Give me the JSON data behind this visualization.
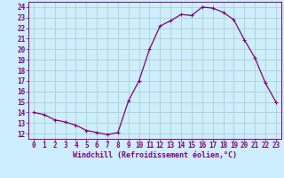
{
  "x": [
    0,
    1,
    2,
    3,
    4,
    5,
    6,
    7,
    8,
    9,
    10,
    11,
    12,
    13,
    14,
    15,
    16,
    17,
    18,
    19,
    20,
    21,
    22,
    23
  ],
  "y": [
    14,
    13.8,
    13.3,
    13.1,
    12.8,
    12.3,
    12.1,
    11.9,
    12.1,
    15.1,
    17.0,
    20.0,
    22.2,
    22.7,
    23.3,
    23.2,
    24.0,
    23.9,
    23.5,
    22.8,
    20.9,
    19.2,
    16.8,
    15.0
  ],
  "line_color": "#800080",
  "marker": "+",
  "marker_size": 3,
  "bg_color": "#cceeff",
  "grid_color": "#aaccbb",
  "xlabel": "Windchill (Refroidissement éolien,°C)",
  "xlim": [
    -0.5,
    23.5
  ],
  "ylim": [
    11.5,
    24.5
  ],
  "yticks": [
    12,
    13,
    14,
    15,
    16,
    17,
    18,
    19,
    20,
    21,
    22,
    23,
    24
  ],
  "xticks": [
    0,
    1,
    2,
    3,
    4,
    5,
    6,
    7,
    8,
    9,
    10,
    11,
    12,
    13,
    14,
    15,
    16,
    17,
    18,
    19,
    20,
    21,
    22,
    23
  ],
  "tick_label_fontsize": 5.5,
  "xlabel_fontsize": 6.0,
  "line_width": 0.9
}
